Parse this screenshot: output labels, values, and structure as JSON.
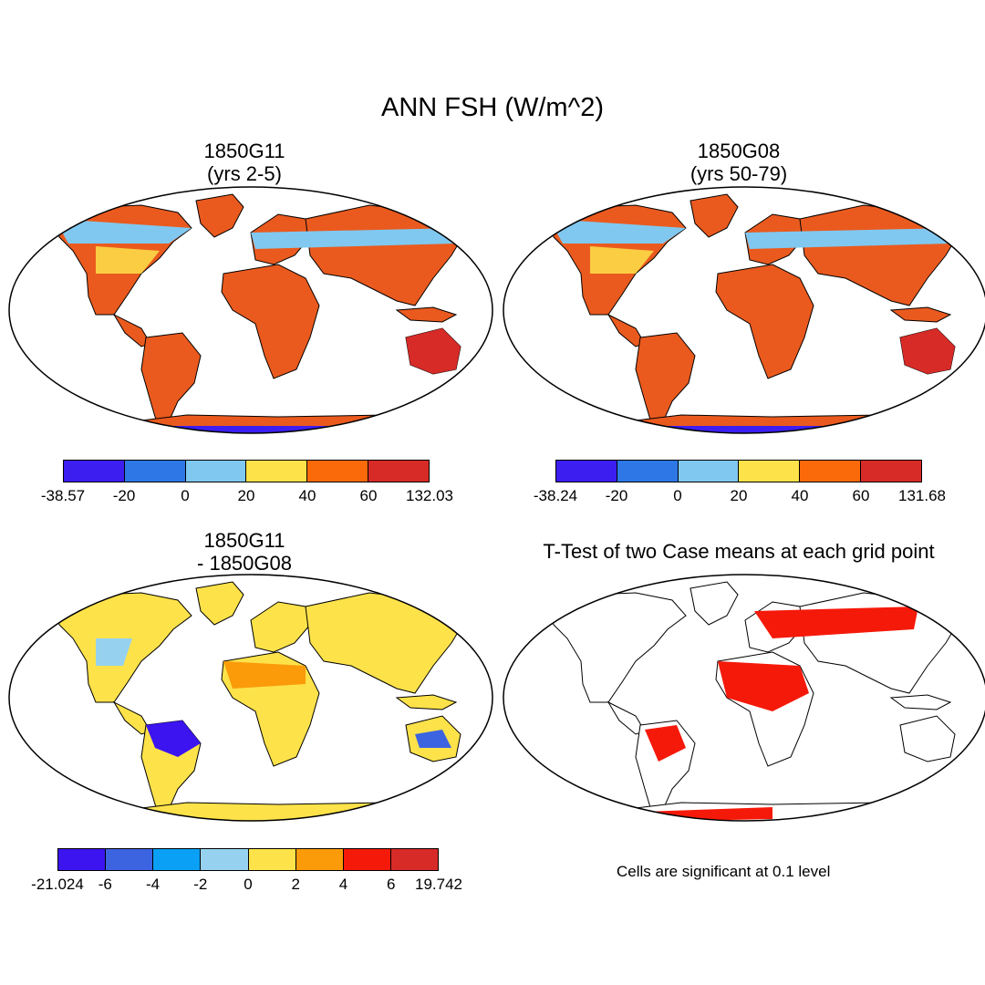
{
  "main_title": "ANN FSH (W/m^2)",
  "panels": [
    {
      "title": "1850G11\n(yrs 2-5)",
      "colorbar": {
        "colors": [
          "#3c1ef0",
          "#2d78e6",
          "#80c8f0",
          "#fde24a",
          "#fb6a0a",
          "#d72b28"
        ],
        "ticks": [
          "-38.57",
          "-20",
          "0",
          "20",
          "40",
          "60",
          "132.03"
        ]
      }
    },
    {
      "title": "1850G08\n(yrs 50-79)",
      "colorbar": {
        "colors": [
          "#3c1ef0",
          "#2d78e6",
          "#80c8f0",
          "#fde24a",
          "#fb6a0a",
          "#d72b28"
        ],
        "ticks": [
          "-38.24",
          "-20",
          "0",
          "20",
          "40",
          "60",
          "131.68"
        ]
      }
    },
    {
      "title": "1850G11\n- 1850G08",
      "colorbar": {
        "colors": [
          "#3c14f0",
          "#3c64e1",
          "#0aa0f5",
          "#96d2f0",
          "#fde24a",
          "#fb9b0a",
          "#f5190a",
          "#d72b28"
        ],
        "ticks": [
          "-21.024",
          "-6",
          "-4",
          "-2",
          "0",
          "2",
          "4",
          "6",
          "19.742"
        ]
      }
    },
    {
      "title": "T-Test of two Case means at each grid point",
      "note": "Cells are significant at 0.1 level"
    }
  ]
}
